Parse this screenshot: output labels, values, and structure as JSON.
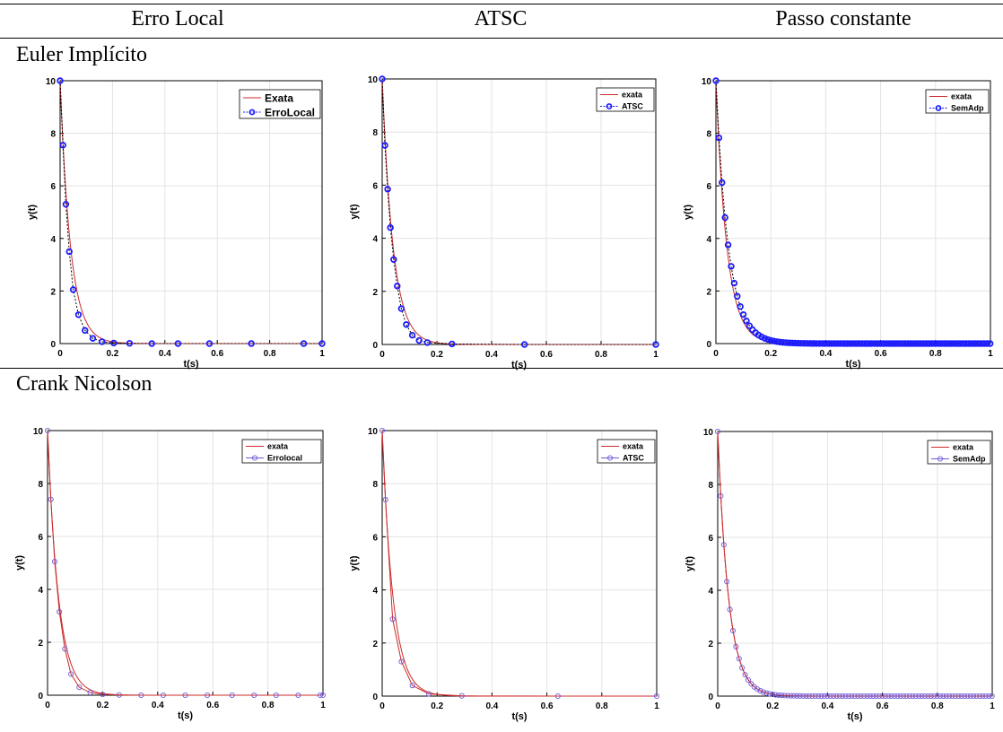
{
  "columns": [
    "Erro Local",
    "ATSC",
    "Passo constante"
  ],
  "rows": [
    "Euler Implícito",
    "Crank Nicolson"
  ],
  "colors": {
    "exact": "#cc2a2a",
    "euler_marker": "#1a1aff",
    "cn_marker": "#6e5ad8",
    "grid": "#e3e3e3"
  },
  "chart_data": [
    {
      "type": "line",
      "row": "Euler Implícito",
      "column": "Erro Local",
      "marker": "bold",
      "xlabel": "t(s)",
      "ylabel": "y(t)",
      "xlim": [
        0,
        1
      ],
      "ylim": [
        0,
        10
      ],
      "xticks": [
        "0",
        "0.2",
        "0.4",
        "0.6",
        "0.8",
        "1"
      ],
      "yticks": [
        "0",
        "2",
        "4",
        "6",
        "8",
        "10"
      ],
      "grid": true,
      "legend_position": "top-right",
      "series": [
        {
          "name": "Exata",
          "kind": "exact",
          "decay": 25,
          "y0": 10
        },
        {
          "name": "ErroLocal",
          "kind": "points",
          "x": [
            0,
            0.011,
            0.022,
            0.035,
            0.05,
            0.07,
            0.095,
            0.125,
            0.16,
            0.205,
            0.265,
            0.35,
            0.45,
            0.57,
            0.73,
            0.93,
            1.0
          ],
          "y": [
            10,
            7.55,
            5.3,
            3.5,
            2.05,
            1.1,
            0.5,
            0.2,
            0.07,
            0.02,
            0.01,
            0,
            0,
            0,
            0,
            0,
            0
          ]
        }
      ]
    },
    {
      "type": "line",
      "row": "Euler Implícito",
      "column": "ATSC",
      "marker": "bold",
      "xlabel": "t(s)",
      "ylabel": "y(t)",
      "xlim": [
        0,
        1
      ],
      "ylim": [
        0,
        10
      ],
      "xticks": [
        "0",
        "0.2",
        "0.4",
        "0.6",
        "0.8",
        "1"
      ],
      "yticks": [
        "0",
        "2",
        "4",
        "6",
        "8",
        "10"
      ],
      "grid": true,
      "legend_position": "top-right",
      "series": [
        {
          "name": "exata",
          "kind": "exact",
          "decay": 25,
          "y0": 10
        },
        {
          "name": "ATSC",
          "kind": "points",
          "x": [
            0,
            0.01,
            0.02,
            0.03,
            0.042,
            0.055,
            0.07,
            0.088,
            0.11,
            0.135,
            0.165,
            0.255,
            0.52,
            1.0
          ],
          "y": [
            10,
            7.5,
            5.85,
            4.4,
            3.2,
            2.2,
            1.35,
            0.75,
            0.35,
            0.15,
            0.07,
            0.02,
            0,
            0
          ]
        }
      ]
    },
    {
      "type": "line",
      "row": "Euler Implícito",
      "column": "Passo constante",
      "marker": "bold",
      "xlabel": "t(s)",
      "ylabel": "y(t)",
      "xlim": [
        0,
        1
      ],
      "ylim": [
        0,
        10
      ],
      "xticks": [
        "0",
        "0.2",
        "0.4",
        "0.6",
        "0.8",
        "1"
      ],
      "yticks": [
        "0",
        "2",
        "4",
        "6",
        "8",
        "10"
      ],
      "grid": true,
      "legend_position": "top-right",
      "series": [
        {
          "name": "exata",
          "kind": "exact",
          "decay": 25,
          "y0": 10
        },
        {
          "name": "SemAdp",
          "kind": "uniform",
          "step": 0.0111,
          "method": "implicit-euler",
          "decay": 25,
          "y0": 10
        }
      ]
    },
    {
      "type": "line",
      "row": "Crank Nicolson",
      "column": "Erro Local",
      "marker": "thin",
      "xlabel": "t(s)",
      "ylabel": "y(t)",
      "xlim": [
        0,
        1
      ],
      "ylim": [
        0,
        10
      ],
      "xticks": [
        "0",
        "0.2",
        "0.4",
        "0.6",
        "0.8",
        "1"
      ],
      "yticks": [
        "0",
        "2",
        "4",
        "6",
        "8",
        "10"
      ],
      "grid": true,
      "legend_position": "top-right",
      "series": [
        {
          "name": "exata",
          "kind": "exact",
          "decay": 25,
          "y0": 10
        },
        {
          "name": "Errolocal",
          "kind": "points",
          "x": [
            0,
            0.012,
            0.026,
            0.043,
            0.063,
            0.085,
            0.115,
            0.155,
            0.2,
            0.26,
            0.34,
            0.42,
            0.5,
            0.58,
            0.67,
            0.75,
            0.83,
            0.91,
            0.99,
            1.0
          ],
          "y": [
            10,
            7.4,
            5.05,
            3.15,
            1.75,
            0.8,
            0.3,
            0.1,
            0.03,
            0.01,
            0,
            0,
            0,
            0,
            0,
            0,
            0,
            0,
            0,
            0
          ]
        }
      ]
    },
    {
      "type": "line",
      "row": "Crank Nicolson",
      "column": "ATSC",
      "marker": "thin",
      "xlabel": "t(s)",
      "ylabel": "y(t)",
      "xlim": [
        0,
        1
      ],
      "ylim": [
        0,
        10
      ],
      "xticks": [
        "0",
        "0.2",
        "0.4",
        "0.6",
        "0.8",
        "1"
      ],
      "yticks": [
        "0",
        "2",
        "4",
        "6",
        "8",
        "10"
      ],
      "grid": true,
      "legend_position": "top-right",
      "series": [
        {
          "name": "exata",
          "kind": "exact",
          "decay": 25,
          "y0": 10
        },
        {
          "name": "ATSC",
          "kind": "points",
          "x": [
            0,
            0.012,
            0.038,
            0.07,
            0.11,
            0.17,
            0.29,
            0.64,
            1.0
          ],
          "y": [
            10,
            7.4,
            2.9,
            1.3,
            0.4,
            0.08,
            0.01,
            0,
            0
          ]
        }
      ]
    },
    {
      "type": "line",
      "row": "Crank Nicolson",
      "column": "Passo constante",
      "marker": "thin",
      "xlabel": "t(s)",
      "ylabel": "y(t)",
      "xlim": [
        0,
        1
      ],
      "ylim": [
        0,
        10
      ],
      "xticks": [
        "0",
        "0.2",
        "0.4",
        "0.6",
        "0.8",
        "1"
      ],
      "yticks": [
        "0",
        "2",
        "4",
        "6",
        "8",
        "10"
      ],
      "grid": true,
      "legend_position": "top-right",
      "series": [
        {
          "name": "exata",
          "kind": "exact",
          "decay": 25,
          "y0": 10
        },
        {
          "name": "SemAdp",
          "kind": "uniform",
          "step": 0.0111,
          "method": "crank-nicolson",
          "decay": 25,
          "y0": 10
        }
      ]
    }
  ]
}
